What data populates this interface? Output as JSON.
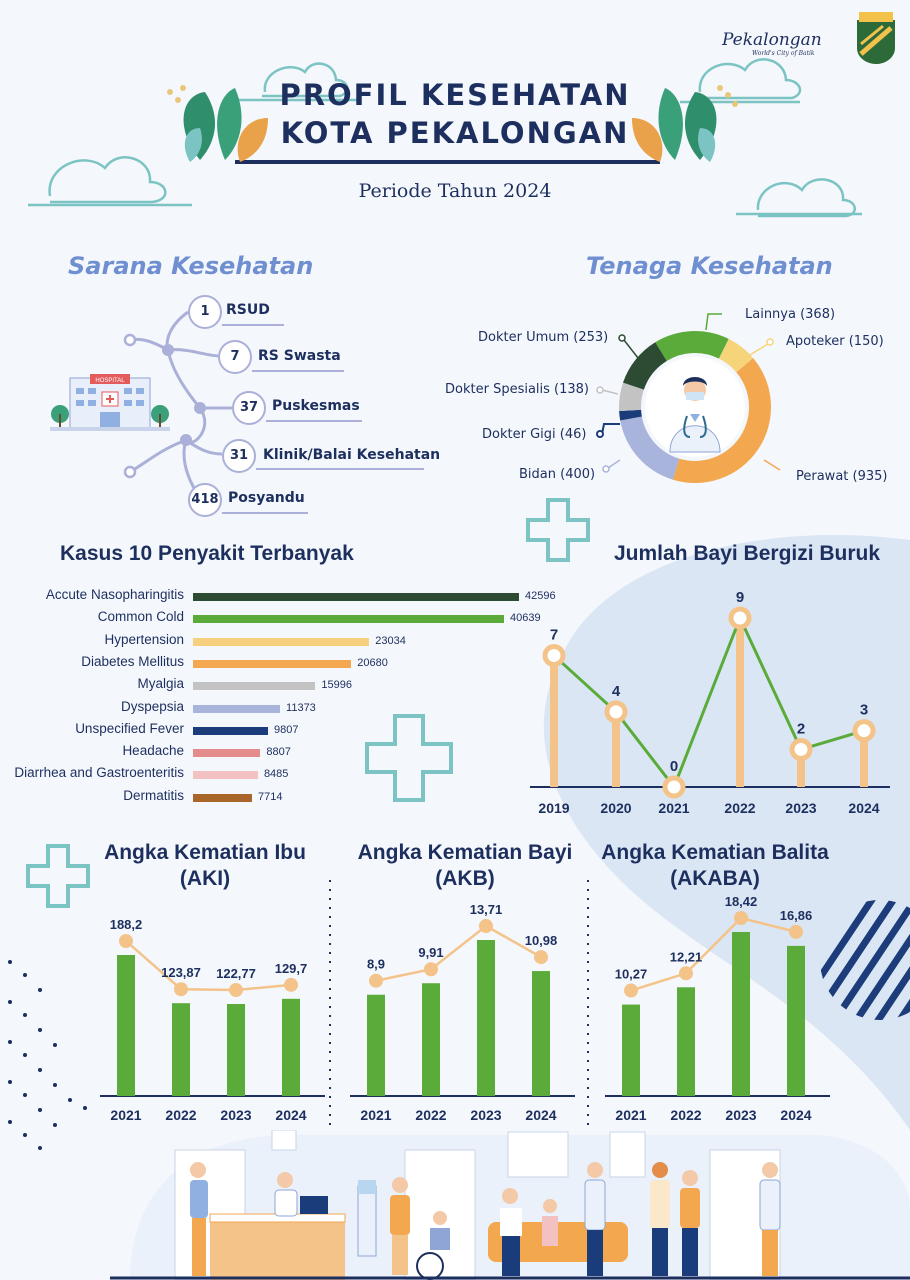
{
  "header": {
    "title_line1": "PROFIL KESEHATAN",
    "title_line2": "KOTA PEKALONGAN",
    "period": "Periode Tahun 2024",
    "logo_text": "Pekalongan",
    "logo_subtext": "World's City of Batik"
  },
  "sarana": {
    "heading": "Sarana Kesehatan",
    "items": [
      {
        "count": "1",
        "label": "RSUD"
      },
      {
        "count": "7",
        "label": "RS Swasta"
      },
      {
        "count": "37",
        "label": "Puskesmas"
      },
      {
        "count": "31",
        "label": "Klinik/Balai Kesehatan"
      },
      {
        "count": "418",
        "label": "Posyandu"
      }
    ],
    "hospital_sign": "HOSPITAL"
  },
  "tenaga": {
    "heading": "Tenaga Kesehatan",
    "segments": [
      {
        "label": "Lainnya (368)",
        "value": 368,
        "color": "#5aab3a"
      },
      {
        "label": "Apoteker (150)",
        "value": 150,
        "color": "#f6d57a"
      },
      {
        "label": "Perawat (935)",
        "value": 935,
        "color": "#f3a74f"
      },
      {
        "label": "Bidan (400)",
        "value": 400,
        "color": "#a8b4dc"
      },
      {
        "label": "Dokter Gigi (46)",
        "value": 46,
        "color": "#1b3c7a"
      },
      {
        "label": "Dokter Spesialis (138)",
        "value": 138,
        "color": "#c3c3c3"
      },
      {
        "label": "Dokter Umum (253)",
        "value": 253,
        "color": "#2d4a33"
      }
    ]
  },
  "chart_data": [
    {
      "type": "bar",
      "title": "Kasus 10 Penyakit Terbanyak",
      "categories": [
        "Accute Nasopharingitis",
        "Common Cold",
        "Hypertension",
        "Diabetes Mellitus",
        "Myalgia",
        "Dyspepsia",
        "Unspecified Fever",
        "Headache",
        "Diarrhea and Gastroenteritis",
        "Dermatitis"
      ],
      "values": [
        42596,
        40639,
        23034,
        20680,
        15996,
        11373,
        9807,
        8807,
        8485,
        7714
      ],
      "colors": [
        "#2d4a33",
        "#5aab3a",
        "#f6d07f",
        "#f3a74f",
        "#c3c3c3",
        "#a8b4dc",
        "#1b3c7a",
        "#e48c8c",
        "#f2c1c1",
        "#a8662a"
      ]
    },
    {
      "type": "line",
      "title": "Jumlah Bayi Bergizi Buruk",
      "categories": [
        "2019",
        "2020",
        "2021",
        "2022",
        "2023",
        "2024"
      ],
      "values": [
        7,
        4,
        0,
        9,
        2,
        3
      ],
      "value_labels": [
        "7",
        "4",
        "0",
        "9",
        "2",
        "3"
      ]
    },
    {
      "type": "bar",
      "title": "Angka Kematian Ibu (AKI)",
      "title_line1": "Angka Kematian Ibu",
      "title_line2": "(AKI)",
      "categories": [
        "2021",
        "2022",
        "2023",
        "2024"
      ],
      "values": [
        188.2,
        123.87,
        122.77,
        129.7
      ],
      "value_labels": [
        "188,2",
        "123,87",
        "122,77",
        "129,7"
      ]
    },
    {
      "type": "bar",
      "title": "Angka Kematian Bayi (AKB)",
      "title_line1": "Angka Kematian Bayi",
      "title_line2": "(AKB)",
      "categories": [
        "2021",
        "2022",
        "2023",
        "2024"
      ],
      "values": [
        8.9,
        9.91,
        13.71,
        10.98
      ],
      "value_labels": [
        "8,9",
        "9,91",
        "13,71",
        "10,98"
      ]
    },
    {
      "type": "bar",
      "title": "Angka Kematian Balita (AKABA)",
      "title_line1": "Angka Kematian Balita",
      "title_line2": "(AKABA)",
      "categories": [
        "2021",
        "2022",
        "2023",
        "2024"
      ],
      "values": [
        10.27,
        12.21,
        18.42,
        16.86
      ],
      "value_labels": [
        "10,27",
        "12,21",
        "18,42",
        "16,86"
      ]
    }
  ]
}
